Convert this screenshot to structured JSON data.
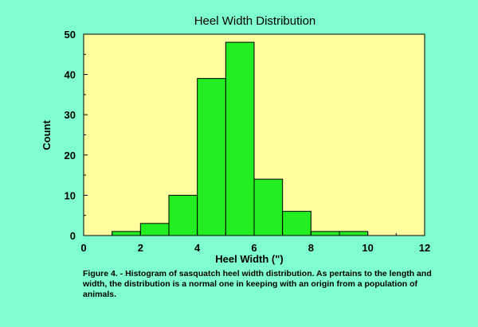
{
  "chart_data": {
    "type": "bar",
    "title": "Heel Width Distribution",
    "xlabel": "Heel Width (\")",
    "ylabel": "Count",
    "xlim": [
      0,
      12
    ],
    "ylim": [
      0,
      50
    ],
    "x_ticks": [
      0,
      2,
      4,
      6,
      8,
      10,
      12
    ],
    "y_ticks": [
      0,
      10,
      20,
      30,
      40,
      50
    ],
    "bin_width": 1,
    "bins": [
      {
        "start": 1,
        "end": 2,
        "count": 1
      },
      {
        "start": 2,
        "end": 3,
        "count": 3
      },
      {
        "start": 3,
        "end": 4,
        "count": 10
      },
      {
        "start": 4,
        "end": 5,
        "count": 39
      },
      {
        "start": 5,
        "end": 6,
        "count": 48
      },
      {
        "start": 6,
        "end": 7,
        "count": 14
      },
      {
        "start": 7,
        "end": 8,
        "count": 6
      },
      {
        "start": 8,
        "end": 9,
        "count": 1
      },
      {
        "start": 9,
        "end": 10,
        "count": 1
      }
    ],
    "grid": false,
    "colors": {
      "page_background": "#7fffcf",
      "plot_background": "#ffff9f",
      "bar_fill": "#22ee22",
      "bar_stroke": "#000000"
    }
  },
  "caption": "Figure 4. - Histogram of sasquatch heel width distribution. As pertains to the length and width, the distribution is a normal one in keeping with an origin from a population of animals."
}
